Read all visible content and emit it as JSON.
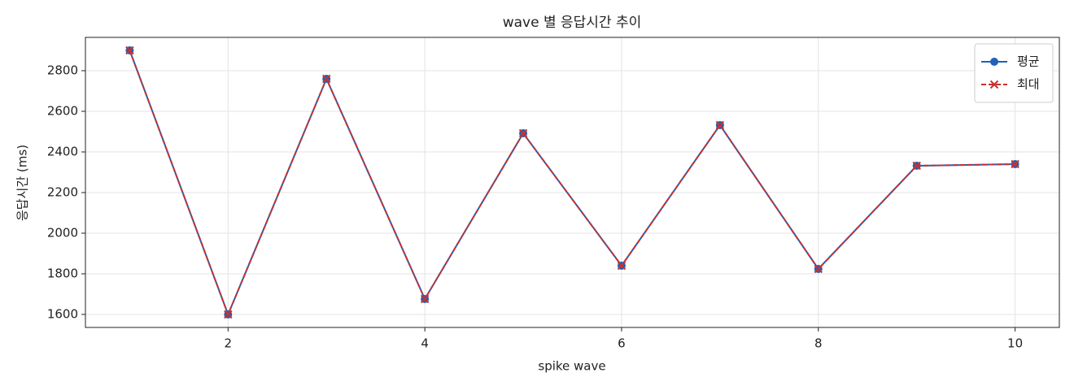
{
  "chart_data": {
    "type": "line",
    "title": "wave 별 응답시간 추이",
    "xlabel": "spike wave",
    "ylabel": "응답시간 (ms)",
    "x": [
      1,
      2,
      3,
      4,
      5,
      6,
      7,
      8,
      9,
      10
    ],
    "series": [
      {
        "name": "평균",
        "color": "#1f62b8",
        "linestyle": "solid",
        "marker": "circle",
        "values": [
          2900,
          1600,
          2760,
          1676,
          2492,
          1840,
          2532,
          1824,
          2332,
          2340
        ]
      },
      {
        "name": "최대",
        "color": "#c8312f",
        "linestyle": "dashed",
        "marker": "x",
        "values": [
          2900,
          1600,
          2760,
          1676,
          2492,
          1840,
          2532,
          1824,
          2332,
          2340
        ]
      }
    ],
    "xlim": [
      0.55,
      10.45
    ],
    "ylim": [
      1536,
      2964
    ],
    "xticks": [
      2,
      4,
      6,
      8,
      10
    ],
    "yticks": [
      1600,
      1800,
      2000,
      2200,
      2400,
      2600,
      2800
    ],
    "grid": true,
    "legend": "upper right"
  }
}
